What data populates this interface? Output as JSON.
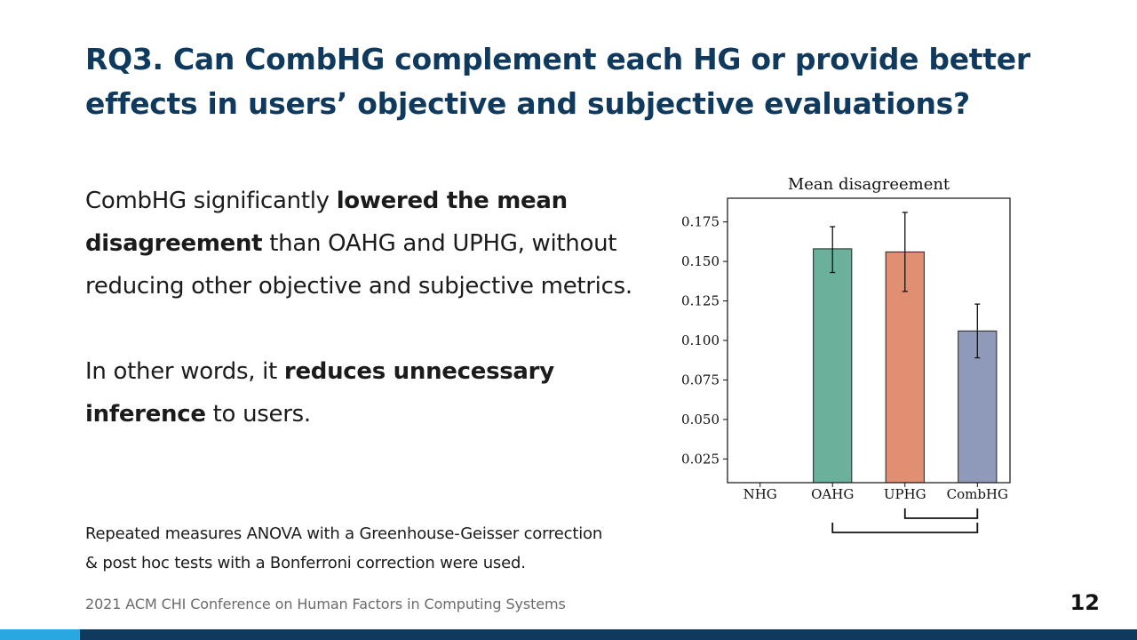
{
  "slide": {
    "title_parts": [
      {
        "text": "RQ3.",
        "bold": true
      },
      {
        "text": " Can ",
        "bold": false
      },
      {
        "text": "CombHG",
        "bold": true
      },
      {
        "text": " complement each HG or ",
        "bold": false
      },
      {
        "text": "provide better effects",
        "bold": true
      },
      {
        "text": " in users’ objective and subjective evaluations?",
        "bold": false
      }
    ],
    "paragraph1_parts": [
      {
        "text": "CombHG significantly ",
        "bold": false
      },
      {
        "text": "lowered the mean disagreement",
        "bold": true
      },
      {
        "text": " than OAHG and UPHG, without reducing other objective and subjective metrics.",
        "bold": false
      }
    ],
    "paragraph2_parts": [
      {
        "text": "In other words, it ",
        "bold": false
      },
      {
        "text": "reduces unnecessary inference",
        "bold": true
      },
      {
        "text": " to users.",
        "bold": false
      }
    ],
    "note_line1": "Repeated measures ANOVA with a Greenhouse-Geisser correction",
    "note_line2": "& post hoc tests with a Bonferroni correction were used.",
    "footer": "2021 ACM CHI Conference on Human Factors in Computing Systems",
    "page_number": "12"
  },
  "colors": {
    "title": "#0f3a5e",
    "footer_bar": "#0f3a5e",
    "footer_accent": "#29a7e1"
  },
  "chart_data": {
    "type": "bar",
    "title": "Mean disagreement",
    "xlabel": "",
    "ylabel": "",
    "categories": [
      "NHG",
      "OAHG",
      "UPHG",
      "CombHG"
    ],
    "values": [
      0.0,
      0.158,
      0.156,
      0.106
    ],
    "error_low": [
      null,
      0.143,
      0.131,
      0.089
    ],
    "error_high": [
      null,
      0.172,
      0.181,
      0.123
    ],
    "colors": [
      "#ffffff",
      "#6bb09a",
      "#e08f72",
      "#8f9aba"
    ],
    "ylim": [
      0.01,
      0.19
    ],
    "yticks": [
      0.025,
      0.05,
      0.075,
      0.1,
      0.125,
      0.15,
      0.175
    ],
    "ytick_labels": [
      "0.025",
      "0.050",
      "0.075",
      "0.100",
      "0.125",
      "0.150",
      "0.175"
    ],
    "grid": false,
    "significance_brackets": [
      {
        "from": "UPHG",
        "to": "CombHG"
      },
      {
        "from": "OAHG",
        "to": "CombHG"
      }
    ]
  }
}
